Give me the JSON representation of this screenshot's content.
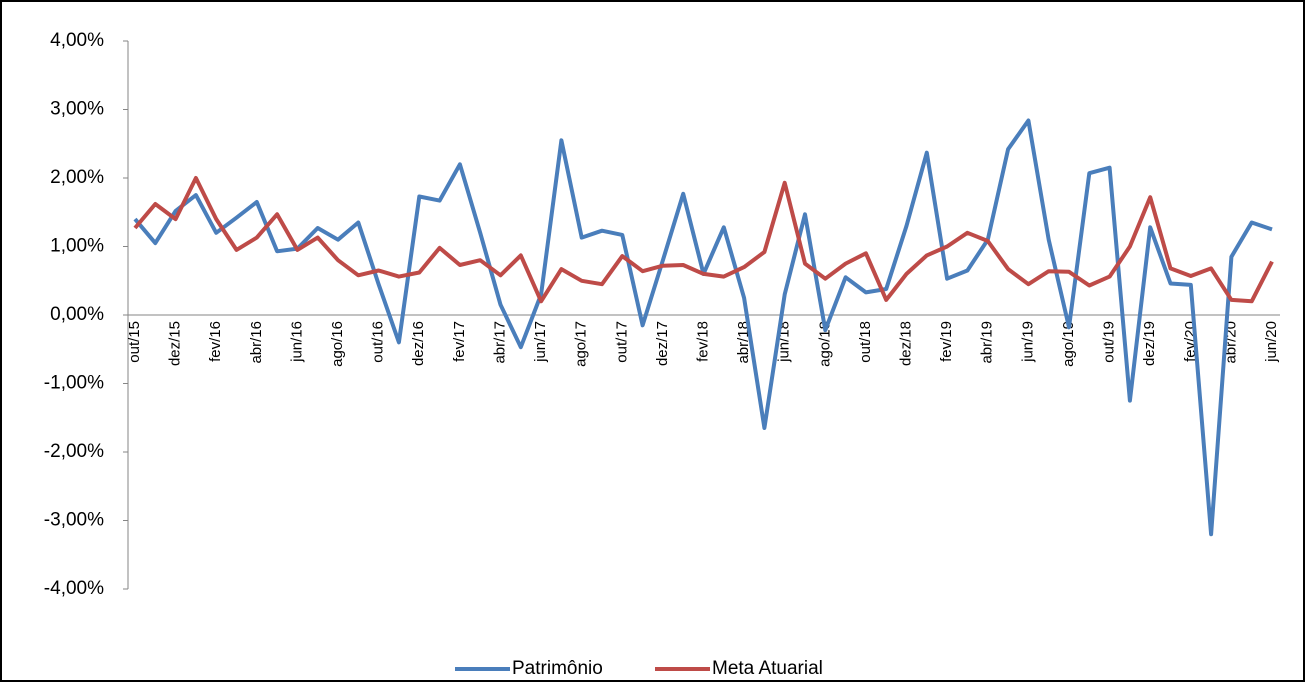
{
  "chart_data": {
    "type": "line",
    "categories": [
      "out/15",
      null,
      "dez/15",
      null,
      "fev/16",
      null,
      "abr/16",
      null,
      "jun/16",
      null,
      "ago/16",
      null,
      "out/16",
      null,
      "dez/16",
      null,
      "fev/17",
      null,
      "abr/17",
      null,
      "jun/17",
      null,
      "ago/17",
      null,
      "out/17",
      null,
      "dez/17",
      null,
      "fev/18",
      null,
      "abr/18",
      null,
      "jun/18",
      null,
      "ago/18",
      null,
      "out/18",
      null,
      "dez/18",
      null,
      "fev/19",
      null,
      "abr/19",
      null,
      "jun/19",
      null,
      "ago/19",
      null,
      "out/19",
      null,
      "dez/19",
      null,
      "fev/20",
      null,
      "abr/20",
      null,
      "jun/20"
    ],
    "series": [
      {
        "name": "Patrimônio",
        "color": "#4a7ebb",
        "values": [
          1.4,
          1.05,
          1.52,
          1.75,
          1.2,
          1.42,
          1.65,
          0.93,
          0.97,
          1.27,
          1.1,
          1.35,
          0.45,
          -0.4,
          1.73,
          1.67,
          2.2,
          1.2,
          0.15,
          -0.47,
          0.3,
          2.55,
          1.13,
          1.23,
          1.17,
          -0.15,
          0.8,
          1.77,
          0.6,
          1.28,
          0.25,
          -1.65,
          0.3,
          1.47,
          -0.22,
          0.55,
          0.33,
          0.38,
          1.3,
          2.37,
          0.53,
          0.65,
          1.1,
          2.42,
          2.84,
          1.1,
          -0.18,
          2.07,
          2.15,
          -1.25,
          1.28,
          0.46,
          0.44,
          -3.2,
          0.85,
          1.35,
          1.25
        ]
      },
      {
        "name": "Meta Atuarial",
        "color": "#be4b48",
        "values": [
          1.27,
          1.62,
          1.4,
          2.0,
          1.4,
          0.95,
          1.13,
          1.47,
          0.95,
          1.13,
          0.8,
          0.58,
          0.65,
          0.56,
          0.62,
          0.98,
          0.73,
          0.8,
          0.58,
          0.87,
          0.2,
          0.67,
          0.5,
          0.45,
          0.86,
          0.64,
          0.72,
          0.73,
          0.6,
          0.56,
          0.7,
          0.92,
          1.93,
          0.75,
          0.53,
          0.75,
          0.9,
          0.22,
          0.6,
          0.87,
          1.0,
          1.2,
          1.08,
          0.67,
          0.45,
          0.64,
          0.63,
          0.43,
          0.56,
          1.0,
          1.72,
          0.68,
          0.57,
          0.68,
          0.22,
          0.2,
          0.78
        ]
      }
    ],
    "ylim": [
      -4,
      4
    ],
    "yticks": [
      {
        "value": 4,
        "label": "4,00%"
      },
      {
        "value": 3,
        "label": "3,00%"
      },
      {
        "value": 2,
        "label": "2,00%"
      },
      {
        "value": 1,
        "label": "1,00%"
      },
      {
        "value": 0,
        "label": "0,00%"
      },
      {
        "value": -1,
        "label": "-1,00%"
      },
      {
        "value": -2,
        "label": "-2,00%"
      },
      {
        "value": -3,
        "label": "-3,00%"
      },
      {
        "value": -4,
        "label": "-4,00%"
      }
    ],
    "legend": "bottom"
  }
}
